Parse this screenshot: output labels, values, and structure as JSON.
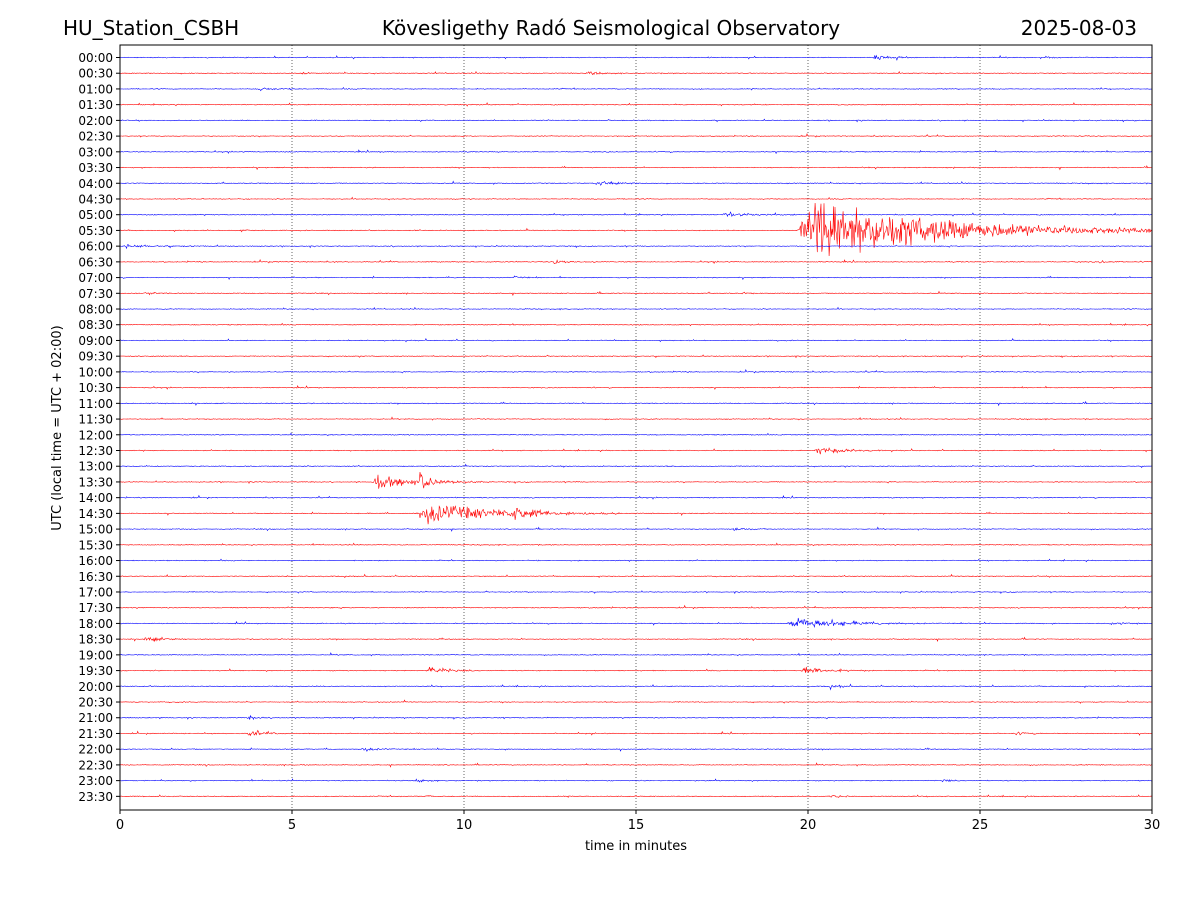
{
  "header": {
    "station": "HU_Station_CSBH",
    "title": "Kövesligethy Radó Seismological Observatory",
    "date": "2025-08-03"
  },
  "chart_data": {
    "type": "line",
    "title": "Kövesligethy Radó Seismological Observatory",
    "xlabel": "time in minutes",
    "ylabel": "UTC (local time = UTC + 02:00)",
    "xlim": [
      0,
      30
    ],
    "x_ticks": [
      0,
      5,
      10,
      15,
      20,
      25,
      30
    ],
    "grid": "vertical dotted at x ticks",
    "row_labels": [
      "00:00",
      "00:30",
      "01:00",
      "01:30",
      "02:00",
      "02:30",
      "03:00",
      "03:30",
      "04:00",
      "04:30",
      "05:00",
      "05:30",
      "06:00",
      "06:30",
      "07:00",
      "07:30",
      "08:00",
      "08:30",
      "09:00",
      "09:30",
      "10:00",
      "10:30",
      "11:00",
      "11:30",
      "12:00",
      "12:30",
      "13:00",
      "13:30",
      "14:00",
      "14:30",
      "15:00",
      "15:30",
      "16:00",
      "16:30",
      "17:00",
      "17:30",
      "18:00",
      "18:30",
      "19:00",
      "19:30",
      "20:00",
      "20:30",
      "21:00",
      "21:30",
      "22:00",
      "22:30",
      "23:00",
      "23:30"
    ],
    "row_colors": [
      "#0000ff",
      "#ff0000"
    ],
    "events": [
      {
        "row": "00:00",
        "x": 21.9,
        "amp": 0.6,
        "dur": 1.4
      },
      {
        "row": "00:00",
        "x": 26.9,
        "amp": 0.25,
        "dur": 0.6
      },
      {
        "row": "00:30",
        "x": 13.6,
        "amp": 0.35,
        "dur": 0.9
      },
      {
        "row": "00:30",
        "x": 5.3,
        "amp": 0.2,
        "dur": 0.5
      },
      {
        "row": "01:00",
        "x": 4.0,
        "amp": 0.4,
        "dur": 1.2
      },
      {
        "row": "04:00",
        "x": 13.8,
        "amp": 0.55,
        "dur": 1.6
      },
      {
        "row": "05:00",
        "x": 17.5,
        "amp": 0.45,
        "dur": 2.4
      },
      {
        "row": "05:30",
        "x": 19.7,
        "amp": 7.0,
        "dur": 10.5
      },
      {
        "row": "05:30",
        "x": 3.5,
        "amp": 0.35,
        "dur": 0.5
      },
      {
        "row": "06:00",
        "x": 0.0,
        "amp": 0.35,
        "dur": 2.5
      },
      {
        "row": "06:30",
        "x": 12.6,
        "amp": 0.5,
        "dur": 0.8
      },
      {
        "row": "06:30",
        "x": 28.4,
        "amp": 0.3,
        "dur": 0.8
      },
      {
        "row": "07:00",
        "x": 11.4,
        "amp": 0.3,
        "dur": 0.6
      },
      {
        "row": "07:30",
        "x": 0.7,
        "amp": 0.3,
        "dur": 0.8
      },
      {
        "row": "07:30",
        "x": 18.0,
        "amp": 0.3,
        "dur": 0.5
      },
      {
        "row": "12:30",
        "x": 20.2,
        "amp": 0.9,
        "dur": 2.0
      },
      {
        "row": "13:30",
        "x": 7.3,
        "amp": 1.3,
        "dur": 3.5
      },
      {
        "row": "13:30",
        "x": 8.7,
        "amp": 2.5,
        "dur": 0.6
      },
      {
        "row": "14:30",
        "x": 8.6,
        "amp": 2.2,
        "dur": 6.0
      },
      {
        "row": "14:30",
        "x": 11.4,
        "amp": 1.4,
        "dur": 1.2
      },
      {
        "row": "15:00",
        "x": 17.8,
        "amp": 0.3,
        "dur": 1.2
      },
      {
        "row": "18:00",
        "x": 19.4,
        "amp": 1.2,
        "dur": 4.0
      },
      {
        "row": "18:00",
        "x": 28.7,
        "amp": 0.25,
        "dur": 1.2
      },
      {
        "row": "18:30",
        "x": 0.7,
        "amp": 0.6,
        "dur": 1.2
      },
      {
        "row": "19:30",
        "x": 8.9,
        "amp": 0.8,
        "dur": 1.6
      },
      {
        "row": "19:30",
        "x": 19.8,
        "amp": 0.8,
        "dur": 2.0
      },
      {
        "row": "20:00",
        "x": 20.6,
        "amp": 0.5,
        "dur": 0.8
      },
      {
        "row": "21:00",
        "x": 3.7,
        "amp": 0.45,
        "dur": 0.6
      },
      {
        "row": "21:30",
        "x": 3.7,
        "amp": 0.7,
        "dur": 1.2
      },
      {
        "row": "21:30",
        "x": 26.0,
        "amp": 0.3,
        "dur": 1.0
      },
      {
        "row": "22:00",
        "x": 7.0,
        "amp": 0.5,
        "dur": 1.0
      },
      {
        "row": "23:00",
        "x": 8.6,
        "amp": 0.45,
        "dur": 0.6
      },
      {
        "row": "23:00",
        "x": 23.9,
        "amp": 0.35,
        "dur": 0.6
      },
      {
        "row": "23:30",
        "x": 20.6,
        "amp": 0.55,
        "dur": 0.8
      },
      {
        "row": "23:30",
        "x": 8.9,
        "amp": 0.35,
        "dur": 0.3
      }
    ]
  }
}
